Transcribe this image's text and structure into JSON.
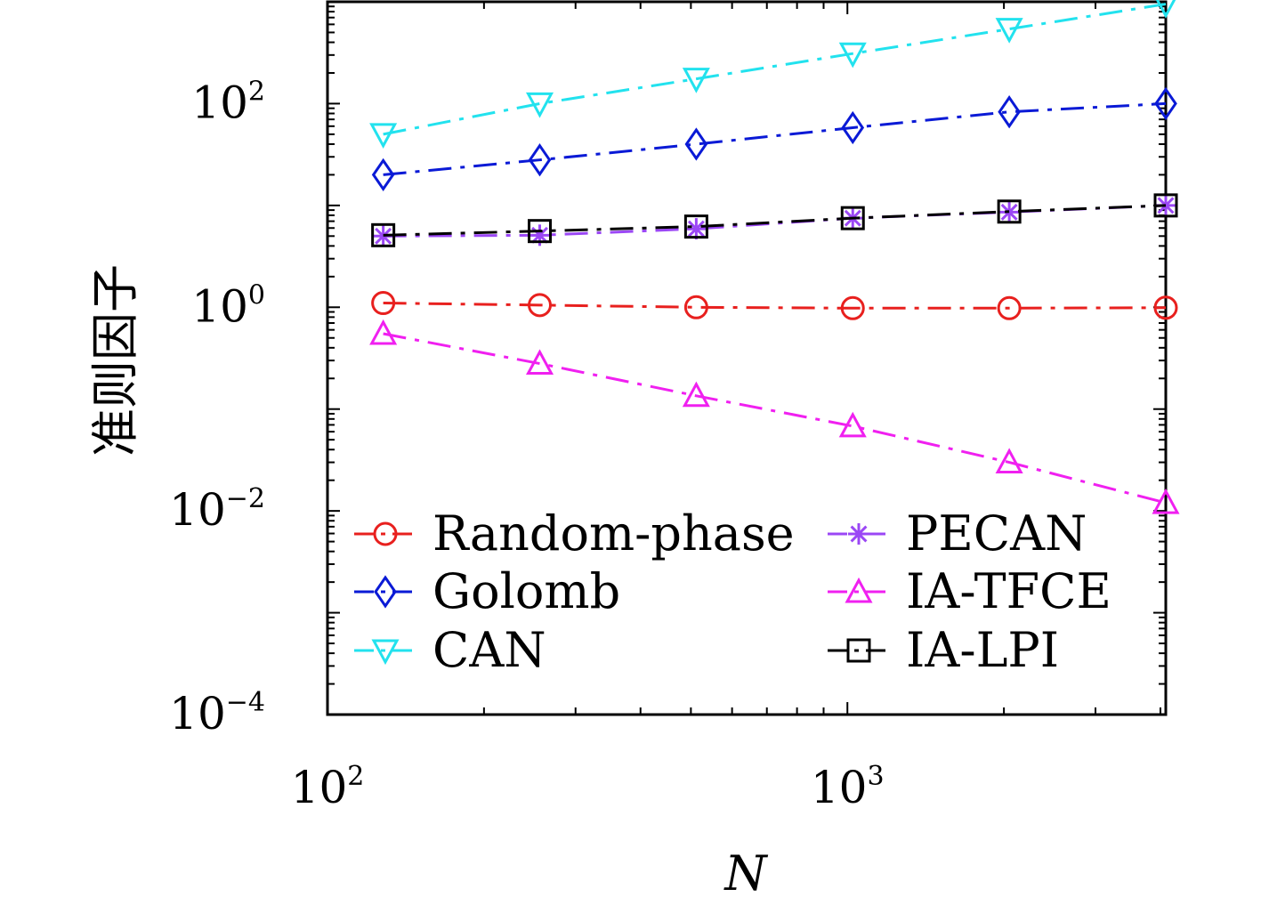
{
  "chart_data": {
    "type": "line",
    "xlabel": "N",
    "ylabel": "准则因子",
    "x_scale": "log",
    "y_scale": "log",
    "xlim": [
      100,
      4096
    ],
    "ylim": [
      0.0001,
      1000
    ],
    "x": [
      128,
      256,
      512,
      1024,
      2048,
      4096
    ],
    "x_ticks": [
      {
        "value": 100,
        "base": "10",
        "exp": "2"
      },
      {
        "value": 1000,
        "base": "10",
        "exp": "3"
      }
    ],
    "y_ticks": [
      {
        "value": 100,
        "base": "10",
        "exp": "2"
      },
      {
        "value": 1,
        "base": "10",
        "exp": "0"
      },
      {
        "value": 0.01,
        "base": "10",
        "exp": "−2"
      },
      {
        "value": 0.0001,
        "base": "10",
        "exp": "−4"
      }
    ],
    "grid": false,
    "legend_position": "bottom",
    "series": [
      {
        "name": "Random-phase",
        "color": "#e8201e",
        "marker": "circle",
        "values": [
          1.1,
          1.05,
          1.0,
          0.98,
          0.98,
          0.99
        ]
      },
      {
        "name": "Golomb",
        "color": "#0a1ad6",
        "marker": "diamond",
        "values": [
          20,
          28,
          40,
          58,
          83,
          100
        ]
      },
      {
        "name": "CAN",
        "color": "#22e2ee",
        "marker": "triangle-down",
        "values": [
          50,
          100,
          175,
          310,
          540,
          950
        ]
      },
      {
        "name": "PECAN",
        "color": "#9b47f5",
        "marker": "asterisk",
        "values": [
          5.0,
          5.1,
          5.9,
          7.5,
          8.6,
          10.0
        ]
      },
      {
        "name": "IA-TFCE",
        "color": "#f020f0",
        "marker": "triangle-up",
        "values": [
          0.55,
          0.28,
          0.135,
          0.068,
          0.03,
          0.012
        ]
      },
      {
        "name": "IA-LPI",
        "color": "#000000",
        "marker": "square",
        "values": [
          5.1,
          5.6,
          6.2,
          7.5,
          8.7,
          10.0
        ]
      }
    ]
  }
}
